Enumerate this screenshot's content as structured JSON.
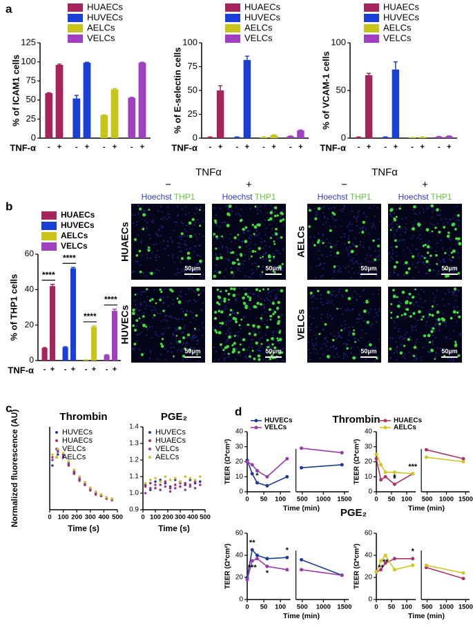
{
  "panel_labels": [
    "a",
    "b",
    "c",
    "d"
  ],
  "d_titles": [
    "Thrombin",
    "PGE₂"
  ],
  "images": {
    "groups": [
      {
        "title": "TNFα",
        "conditions": [
          "−",
          "+"
        ],
        "stains": [
          "Hoechst",
          "THP1"
        ],
        "rows": [
          "HUAECs",
          "HUVECs"
        ],
        "scale_bar": "50µm"
      },
      {
        "title": "TNFα",
        "conditions": [
          "−",
          "+"
        ],
        "stains": [
          "Hoechst",
          "THP1"
        ],
        "rows": [
          "AELCs",
          "VELCs"
        ],
        "scale_bar": "50µm"
      }
    ]
  },
  "chart_data": [
    {
      "type": "bar",
      "y_label": "% of ICAM1 cells",
      "x_label": "TNF-α",
      "categories": [
        "-",
        "+"
      ],
      "ylim": [
        0,
        125
      ],
      "yticks": [
        0,
        25,
        50,
        75,
        100,
        125
      ],
      "series": [
        {
          "name": "HUAECs",
          "color": "#a6235c",
          "values": [
            59,
            96
          ],
          "errors": [
            0.5,
            1
          ]
        },
        {
          "name": "HUVECs",
          "color": "#1a3fd6",
          "values": [
            52,
            99
          ],
          "errors": [
            4,
            0.5
          ]
        },
        {
          "name": "AELCs",
          "color": "#c8c41a",
          "values": [
            30,
            64
          ],
          "errors": [
            0.5,
            1
          ]
        },
        {
          "name": "VELCs",
          "color": "#a040c0",
          "values": [
            53,
            99
          ],
          "errors": [
            0.5,
            0.5
          ]
        }
      ]
    },
    {
      "type": "bar",
      "y_label": "% of E-selectin cells",
      "x_label": "TNF-α",
      "categories": [
        "-",
        "+"
      ],
      "ylim": [
        0,
        100
      ],
      "yticks": [
        0,
        25,
        50,
        75,
        100
      ],
      "series": [
        {
          "name": "HUAECs",
          "color": "#a6235c",
          "values": [
            1,
            50
          ],
          "errors": [
            0.3,
            5
          ]
        },
        {
          "name": "HUVECs",
          "color": "#1a3fd6",
          "values": [
            1,
            82
          ],
          "errors": [
            0.3,
            4
          ]
        },
        {
          "name": "AELCs",
          "color": "#c8c41a",
          "values": [
            1,
            3
          ],
          "errors": [
            0.3,
            0.5
          ]
        },
        {
          "name": "VELCs",
          "color": "#a040c0",
          "values": [
            2,
            8
          ],
          "errors": [
            0.3,
            0.5
          ]
        }
      ]
    },
    {
      "type": "bar",
      "y_label": "% of VCAM-1 cells",
      "x_label": "TNF-α",
      "categories": [
        "-",
        "+"
      ],
      "ylim": [
        0,
        100
      ],
      "yticks": [
        0,
        50,
        100
      ],
      "series": [
        {
          "name": "HUAECs",
          "color": "#a6235c",
          "values": [
            1,
            66
          ],
          "errors": [
            0.3,
            2
          ]
        },
        {
          "name": "HUVECs",
          "color": "#1a3fd6",
          "values": [
            1,
            72
          ],
          "errors": [
            0.3,
            8
          ]
        },
        {
          "name": "AELCs",
          "color": "#c8c41a",
          "values": [
            0.5,
            1
          ],
          "errors": [
            0.2,
            0.3
          ]
        },
        {
          "name": "VELCs",
          "color": "#a040c0",
          "values": [
            1.5,
            2
          ],
          "errors": [
            0.3,
            0.3
          ]
        }
      ]
    },
    {
      "type": "bar",
      "y_label": "% of THP1 cells",
      "x_label": "TNF-α",
      "categories": [
        "-",
        "+"
      ],
      "ylim": [
        0,
        60
      ],
      "yticks": [
        0,
        20,
        40,
        60
      ],
      "series": [
        {
          "name": "HUAECs",
          "color": "#a6235c",
          "values": [
            7,
            42
          ],
          "errors": [
            0.3,
            1
          ],
          "annotation": "****"
        },
        {
          "name": "HUVECs",
          "color": "#1a3fd6",
          "values": [
            7.5,
            52
          ],
          "errors": [
            0.3,
            0.5
          ],
          "annotation": "****"
        },
        {
          "name": "AELCs",
          "color": "#c8c41a",
          "values": [
            0.3,
            19
          ],
          "errors": [
            0.1,
            0.5
          ],
          "annotation": "****"
        },
        {
          "name": "VELCs",
          "color": "#a040c0",
          "values": [
            3,
            28
          ],
          "errors": [
            0.3,
            1
          ],
          "annotation": "****"
        }
      ]
    },
    {
      "type": "scatter",
      "title": "Thrombin",
      "y_label": "Normalized fluorescence (AU)",
      "x_label": "Time (s)",
      "xlim": [
        0,
        500
      ],
      "xticks": [
        0,
        100,
        200,
        300,
        400,
        500
      ],
      "ylim": [
        1.2,
        1.8
      ],
      "x": [
        20,
        60,
        100,
        140,
        180,
        220,
        260,
        300,
        340,
        380,
        420,
        460
      ],
      "series": [
        {
          "name": "HUVECs",
          "color": "#2a3a9a",
          "values": [
            1.52,
            1.6,
            1.6,
            1.53,
            1.47,
            1.42,
            1.38,
            1.35,
            1.32,
            1.3,
            1.28,
            1.27
          ]
        },
        {
          "name": "HUAECs",
          "color": "#b03060",
          "values": [
            1.58,
            1.62,
            1.58,
            1.52,
            1.46,
            1.41,
            1.38,
            1.34,
            1.31,
            1.3,
            1.28,
            1.27
          ]
        },
        {
          "name": "VELCs",
          "color": "#9040b0",
          "values": [
            1.56,
            1.63,
            1.59,
            1.54,
            1.48,
            1.43,
            1.39,
            1.35,
            1.33,
            1.31,
            1.29,
            1.28
          ]
        },
        {
          "name": "AELCs",
          "color": "#d0c020",
          "values": [
            1.6,
            1.64,
            1.61,
            1.55,
            1.49,
            1.44,
            1.4,
            1.36,
            1.33,
            1.31,
            1.29,
            1.28
          ]
        }
      ]
    },
    {
      "type": "scatter",
      "title": "PGE₂",
      "x_label": "Time (s)",
      "xlim": [
        0,
        500
      ],
      "xticks": [
        0,
        100,
        200,
        300,
        400,
        500
      ],
      "ylim": [
        0.9,
        1.4
      ],
      "yticks": [
        0.9,
        {
          "value": 1,
          "label": "1.0"
        },
        1.1,
        1.2,
        1.3,
        1.4
      ],
      "x": [
        20,
        60,
        100,
        140,
        180,
        220,
        260,
        300,
        340,
        380,
        420,
        460
      ],
      "series": [
        {
          "name": "HUVECs",
          "color": "#2a3a9a",
          "values": [
            1.05,
            1.02,
            1.07,
            1.08,
            1.06,
            1.04,
            1.08,
            1.07,
            1.05,
            1.08,
            1.06,
            1.07
          ]
        },
        {
          "name": "HUAECs",
          "color": "#b03060",
          "values": [
            1.04,
            1.06,
            1.03,
            1.05,
            1.07,
            1.03,
            1.05,
            1.04,
            1.06,
            1.05,
            1.07,
            1.05
          ]
        },
        {
          "name": "VELCs",
          "color": "#9040b0",
          "values": [
            1.0,
            1.03,
            1.05,
            1.02,
            1.04,
            1.01,
            1.03,
            1.06,
            1.02,
            1.04,
            1.03,
            1.05
          ]
        },
        {
          "name": "AELCs",
          "color": "#d0c020",
          "values": [
            1.06,
            1.08,
            1.09,
            1.07,
            1.1,
            1.08,
            1.09,
            1.07,
            1.1,
            1.09,
            1.08,
            1.1
          ]
        }
      ]
    },
    {
      "type": "line",
      "y_label": "TEER (Ω*cm²)",
      "x_label": "Time (min)",
      "legend": "top-left",
      "xlim": [
        0,
        1600
      ],
      "x_break": [
        130,
        350
      ],
      "xticks": [
        0,
        50,
        100,
        500,
        1000,
        1500
      ],
      "ylim": [
        0,
        40
      ],
      "yticks": [
        0,
        10,
        20,
        30,
        40
      ],
      "x": [
        0,
        15,
        30,
        60,
        120,
        480,
        1440
      ],
      "series": [
        {
          "name": "HUVECs",
          "color": "#1a3a9c",
          "values": [
            21,
            12,
            6,
            4,
            10,
            16,
            18
          ],
          "significance": [
            null,
            null,
            "*",
            "*",
            null,
            null,
            null
          ]
        },
        {
          "name": "VELCs",
          "color": "#9b3ab0",
          "values": [
            20,
            18,
            14,
            10,
            22,
            29,
            26
          ],
          "significance": [
            null,
            null,
            null,
            null,
            null,
            null,
            null
          ]
        }
      ]
    },
    {
      "type": "line",
      "y_label": "TEER (Ω*cm²)",
      "x_label": "Time (min)",
      "legend": "top-left",
      "xlim": [
        0,
        1600
      ],
      "x_break": [
        130,
        350
      ],
      "xticks": [
        0,
        50,
        100,
        500,
        1000,
        1500
      ],
      "ylim": [
        0,
        40
      ],
      "yticks": [
        0,
        10,
        20,
        30,
        40
      ],
      "x": [
        0,
        15,
        30,
        60,
        120,
        480,
        1440
      ],
      "series": [
        {
          "name": "HUAECs",
          "color": "#b0306a",
          "values": [
            22,
            8,
            10,
            5,
            12,
            28,
            22
          ],
          "significance": [
            null,
            null,
            null,
            "*",
            "***",
            null,
            null
          ]
        },
        {
          "name": "AELCs",
          "color": "#d4c41a",
          "values": [
            25,
            18,
            13,
            13,
            12,
            23,
            20
          ],
          "significance": [
            null,
            null,
            null,
            "*",
            null,
            null,
            null
          ]
        }
      ]
    },
    {
      "type": "line",
      "y_label": "TEER (Ω*cm²)",
      "x_label": "Time (min)",
      "xlim": [
        0,
        1600
      ],
      "x_break": [
        130,
        350
      ],
      "xticks": [
        0,
        50,
        100,
        500,
        1000,
        1500
      ],
      "ylim": [
        0,
        60
      ],
      "yticks": [
        0,
        20,
        40,
        60
      ],
      "x": [
        0,
        15,
        30,
        60,
        120,
        480,
        1440
      ],
      "series": [
        {
          "name": "HUVECs",
          "color": "#1a3a9c",
          "values": [
            20,
            45,
            40,
            37,
            38,
            36,
            22
          ],
          "significance": [
            null,
            "**",
            null,
            null,
            "*",
            null,
            null
          ]
        },
        {
          "name": "VELCs",
          "color": "#9b3ab0",
          "values": [
            18,
            35,
            37,
            30,
            27,
            27,
            22
          ],
          "significance": [
            null,
            "***",
            null,
            "*",
            null,
            null,
            null
          ]
        }
      ]
    },
    {
      "type": "line",
      "y_label": "TEER (Ω*cm²)",
      "x_label": "Time (min)",
      "xlim": [
        0,
        1600
      ],
      "x_break": [
        130,
        350
      ],
      "xticks": [
        0,
        50,
        100,
        500,
        1000,
        1500
      ],
      "ylim": [
        0,
        60
      ],
      "yticks": [
        0,
        20,
        40,
        60
      ],
      "x": [
        0,
        15,
        30,
        60,
        120,
        480,
        1440
      ],
      "series": [
        {
          "name": "HUAECs",
          "color": "#b0306a",
          "values": [
            25,
            27,
            33,
            37,
            37,
            29,
            19
          ],
          "significance": [
            null,
            null,
            null,
            null,
            "*",
            null,
            null
          ]
        },
        {
          "name": "AELCs",
          "color": "#d4c41a",
          "values": [
            25,
            35,
            40,
            27,
            31,
            31,
            24
          ],
          "significance": [
            null,
            "**",
            "**",
            null,
            null,
            null,
            null
          ]
        }
      ]
    }
  ]
}
